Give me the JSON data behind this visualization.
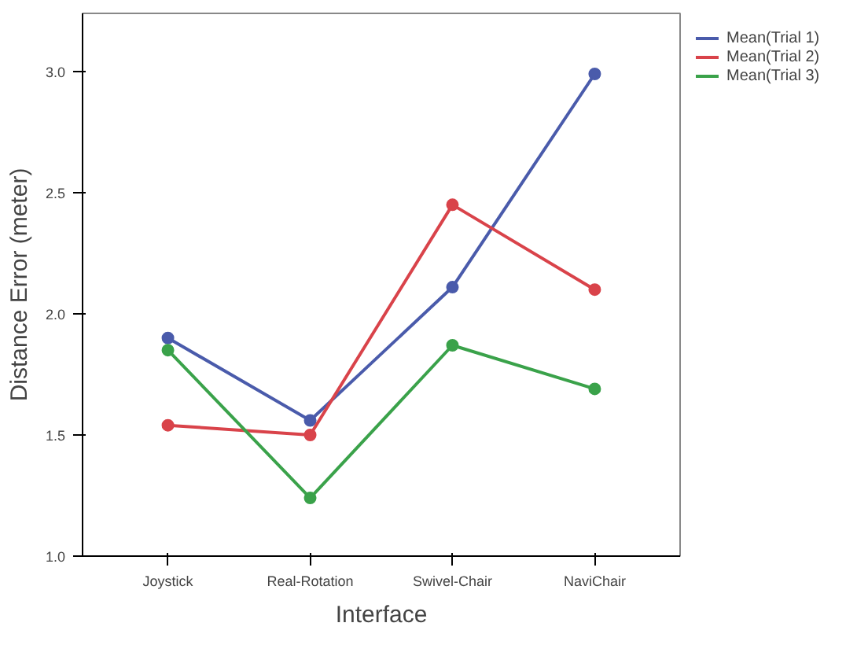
{
  "chart_data": {
    "type": "line",
    "xlabel": "Interface",
    "ylabel": "Distance Error (meter)",
    "categories": [
      "Joystick",
      "Real-Rotation",
      "Swivel-Chair",
      "NaviChair"
    ],
    "series": [
      {
        "name": "Mean(Trial 1)",
        "color": "#4a5bab",
        "values": [
          1.9,
          1.56,
          2.11,
          2.99
        ]
      },
      {
        "name": "Mean(Trial 2)",
        "color": "#d9434a",
        "values": [
          1.54,
          1.5,
          2.45,
          2.1
        ]
      },
      {
        "name": "Mean(Trial 3)",
        "color": "#3aa24a",
        "values": [
          1.85,
          1.24,
          1.87,
          1.69
        ]
      }
    ],
    "ylim": [
      1.0,
      3.24
    ],
    "yticks": [
      {
        "value": 1.0,
        "label": "1.0"
      },
      {
        "value": 1.5,
        "label": "1.5"
      },
      {
        "value": 2.0,
        "label": "2.0"
      },
      {
        "value": 2.5,
        "label": "2.5"
      },
      {
        "value": 3.0,
        "label": "3.0"
      }
    ],
    "grid": false,
    "legend": "top right",
    "marker": "circle",
    "line_style": "solid"
  }
}
